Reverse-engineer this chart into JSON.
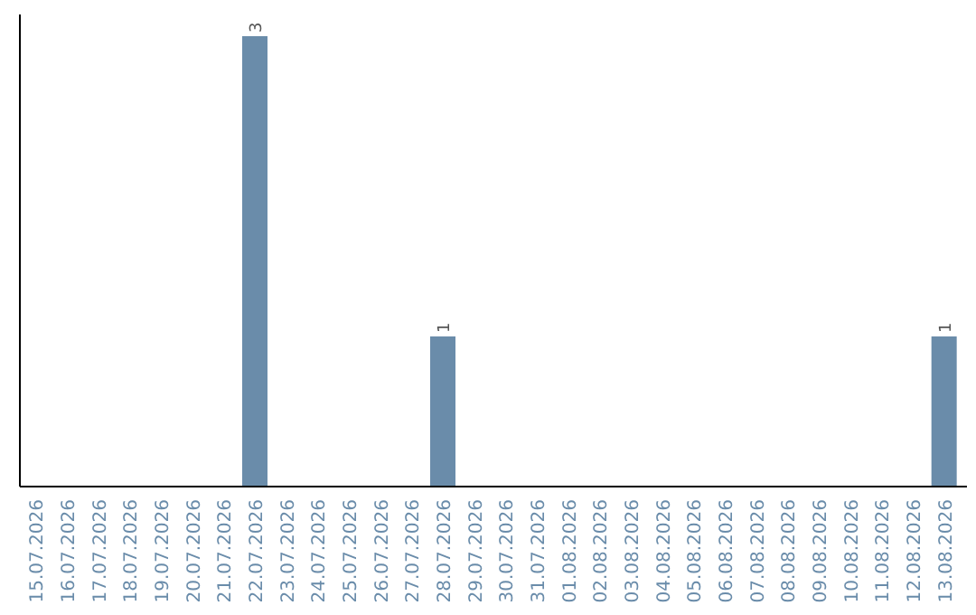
{
  "chart_data": {
    "type": "bar",
    "categories": [
      "15.07.2026",
      "16.07.2026",
      "17.07.2026",
      "18.07.2026",
      "19.07.2026",
      "20.07.2026",
      "21.07.2026",
      "22.07.2026",
      "23.07.2026",
      "24.07.2026",
      "25.07.2026",
      "26.07.2026",
      "27.07.2026",
      "28.07.2026",
      "29.07.2026",
      "30.07.2026",
      "31.07.2026",
      "01.08.2026",
      "02.08.2026",
      "03.08.2026",
      "04.08.2026",
      "05.08.2026",
      "06.08.2026",
      "07.08.2026",
      "08.08.2026",
      "09.08.2026",
      "10.08.2026",
      "11.08.2026",
      "12.08.2026",
      "13.08.2026"
    ],
    "values": [
      0,
      0,
      0,
      0,
      0,
      0,
      0,
      3,
      0,
      0,
      0,
      0,
      0,
      1,
      0,
      0,
      0,
      0,
      0,
      0,
      0,
      0,
      0,
      0,
      0,
      0,
      0,
      0,
      0,
      1
    ],
    "value_labels": [
      null,
      null,
      null,
      null,
      null,
      null,
      null,
      "3",
      null,
      null,
      null,
      null,
      null,
      "1",
      null,
      null,
      null,
      null,
      null,
      null,
      null,
      null,
      null,
      null,
      null,
      null,
      null,
      null,
      null,
      "1"
    ],
    "color": "#6a8caa",
    "grid": false
  }
}
